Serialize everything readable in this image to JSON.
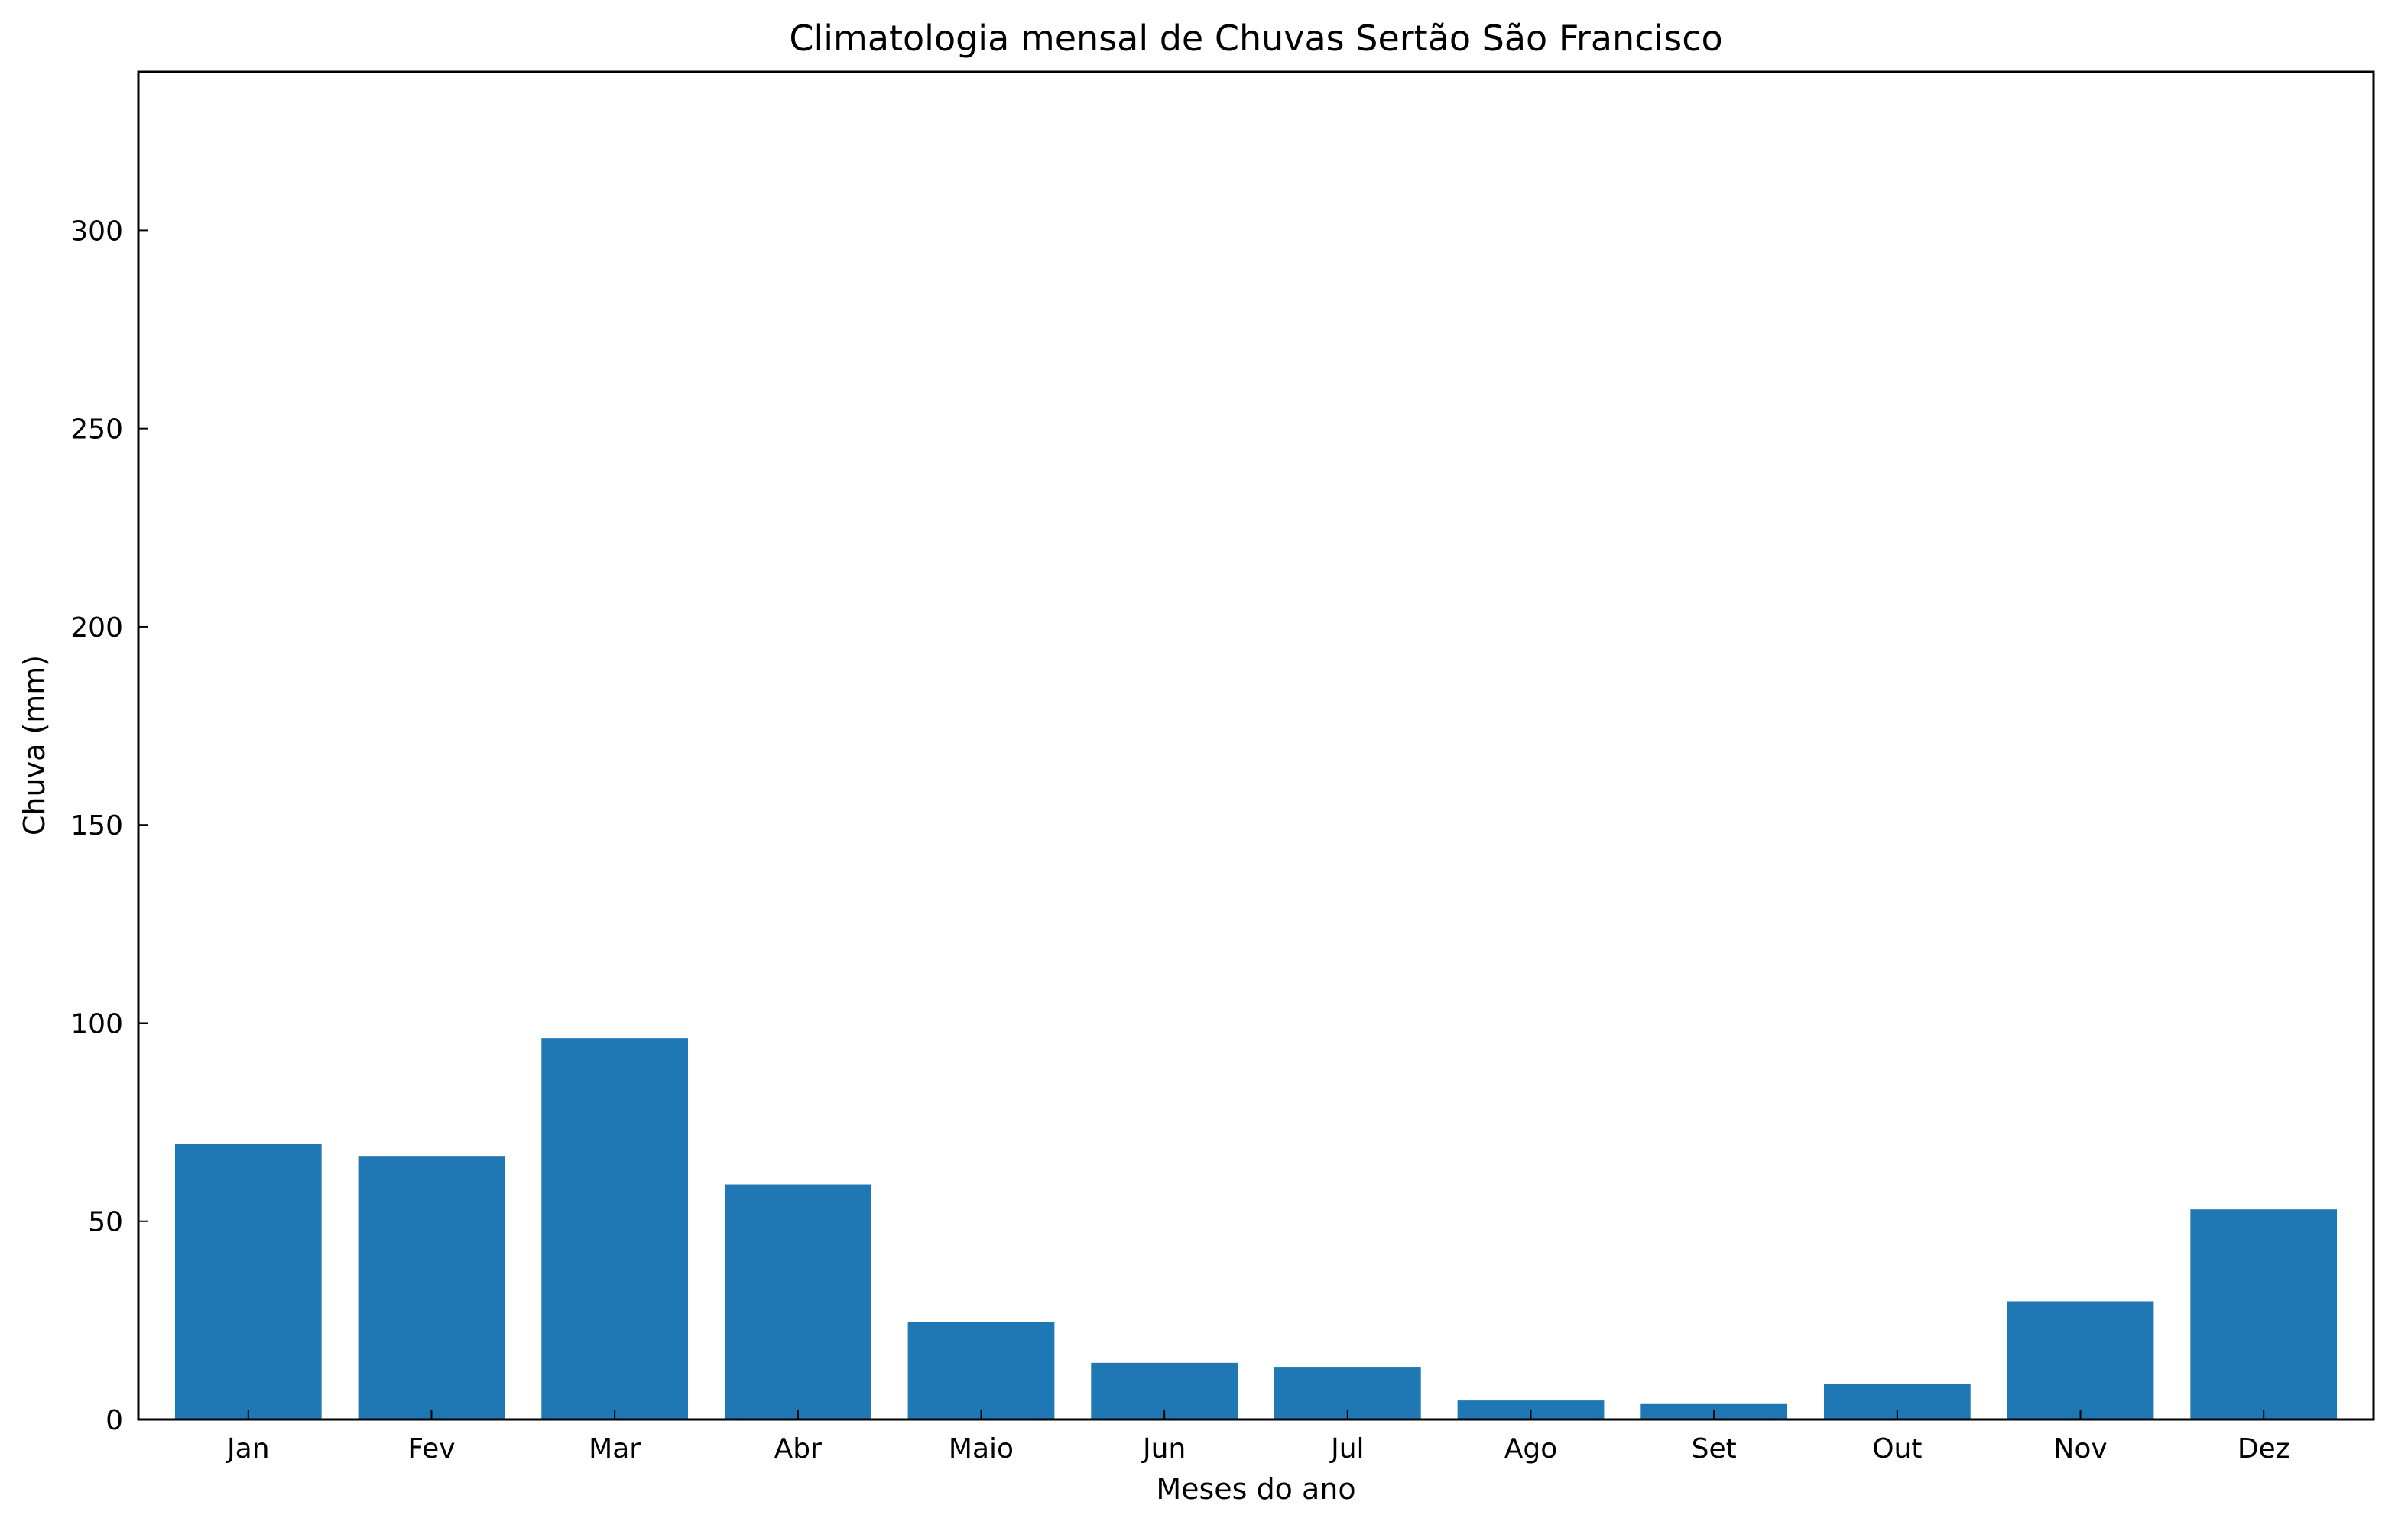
{
  "chart_data": {
    "type": "bar",
    "title": "Climatologia mensal de Chuvas Sertão São Francisco",
    "xlabel": "Meses do ano",
    "ylabel": "Chuva (mm)",
    "categories": [
      "Jan",
      "Fev",
      "Mar",
      "Abr",
      "Maio",
      "Jun",
      "Jul",
      "Ago",
      "Set",
      "Out",
      "Nov",
      "Dez"
    ],
    "values": [
      69.5,
      66.5,
      96.2,
      59.3,
      24.5,
      14.3,
      13.1,
      4.8,
      3.9,
      8.9,
      29.8,
      53.0
    ],
    "ylim": [
      0,
      340
    ],
    "yticks": [
      0,
      50,
      100,
      150,
      200,
      250,
      300
    ],
    "grid": false,
    "bar_color": "#1f77b4"
  }
}
